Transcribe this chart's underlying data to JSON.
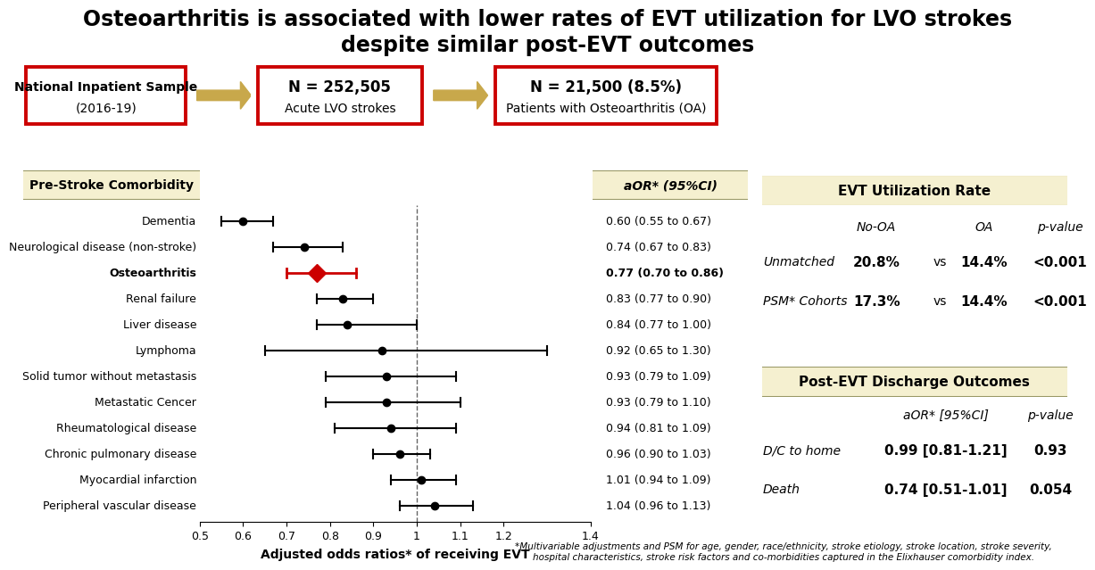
{
  "title_line1": "Osteoarthritis is associated with lower rates of EVT utilization for LVO strokes",
  "title_line2": "despite similar post-EVT outcomes",
  "title_fontsize": 17,
  "box1_line1": "National Inpatient Sample",
  "box1_line2": "(2016-19)",
  "box2_line1": "N = 252,505",
  "box2_line2": "Acute LVO strokes",
  "box3_line1": "N = 21,500 (8.5%)",
  "box3_line2": "Patients with Osteoarthritis (OA)",
  "forest_label": "Pre-Stroke Comorbidity",
  "forest_ci_label": "aOR* (95%CI)",
  "forest_xlabel": "Adjusted odds ratios* of receiving EVT",
  "forest_xlim": [
    0.5,
    1.4
  ],
  "conditions": [
    "Dementia",
    "Neurological disease (non-stroke)",
    "Osteoarthritis",
    "Renal failure",
    "Liver disease",
    "Lymphoma",
    "Solid tumor without metastasis",
    "Metastatic Cencer",
    "Rheumatological disease",
    "Chronic pulmonary disease",
    "Myocardial infarction",
    "Peripheral vascular disease"
  ],
  "or_values": [
    0.6,
    0.74,
    0.77,
    0.83,
    0.84,
    0.92,
    0.93,
    0.93,
    0.94,
    0.96,
    1.01,
    1.04
  ],
  "ci_low": [
    0.55,
    0.67,
    0.7,
    0.77,
    0.77,
    0.65,
    0.79,
    0.79,
    0.81,
    0.9,
    0.94,
    0.96
  ],
  "ci_high": [
    0.67,
    0.83,
    0.86,
    0.9,
    1.0,
    1.3,
    1.09,
    1.1,
    1.09,
    1.03,
    1.09,
    1.13
  ],
  "ci_labels": [
    "0.60 (0.55 to 0.67)",
    "0.74 (0.67 to 0.83)",
    "0.77 (0.70 to 0.86)",
    "0.83 (0.77 to 0.90)",
    "0.84 (0.77 to 1.00)",
    "0.92 (0.65 to 1.30)",
    "0.93 (0.79 to 1.09)",
    "0.93 (0.79 to 1.10)",
    "0.94 (0.81 to 1.09)",
    "0.96 (0.90 to 1.03)",
    "1.01 (0.94 to 1.09)",
    "1.04 (0.96 to 1.13)"
  ],
  "oa_index": 2,
  "evt_title": "EVT Utilization Rate",
  "evt_header_col1": "No-OA",
  "evt_header_col2": "OA",
  "evt_header_col3": "p-value",
  "evt_row1_label": "Unmatched",
  "evt_row1_v1": "20.8%",
  "evt_row1_v2": "14.4%",
  "evt_row1_p": "<0.001",
  "evt_row2_label": "PSM* Cohorts",
  "evt_row2_v1": "17.3%",
  "evt_row2_v2": "14.4%",
  "evt_row2_p": "<0.001",
  "post_title": "Post-EVT Discharge Outcomes",
  "post_header_col1": "aOR* [95%CI]",
  "post_header_col2": "p-value",
  "post_row1_label": "D/C to home",
  "post_row1_v1": "0.99 [0.81-1.21]",
  "post_row1_p": "0.93",
  "post_row2_label": "Death",
  "post_row2_v1": "0.74 [0.51-1.01]",
  "post_row2_p": "0.054",
  "footnote": "*Multivariable adjustments and PSM for age, gender, race/ethnicity, stroke etiology, stroke location, stroke severity,\nhospital characteristics, stroke risk factors and co-morbidities captured in the Elixhauser comorbidity index.",
  "bg_color": "#ffffff",
  "box_red_color": "#cc0000",
  "box_fill_color": "#ffffff",
  "arrow_fill": "#c8a84b",
  "evt_box_fill": "#f5f0d0",
  "evt_box_edge": "#999966",
  "oa_color": "#cc0000"
}
